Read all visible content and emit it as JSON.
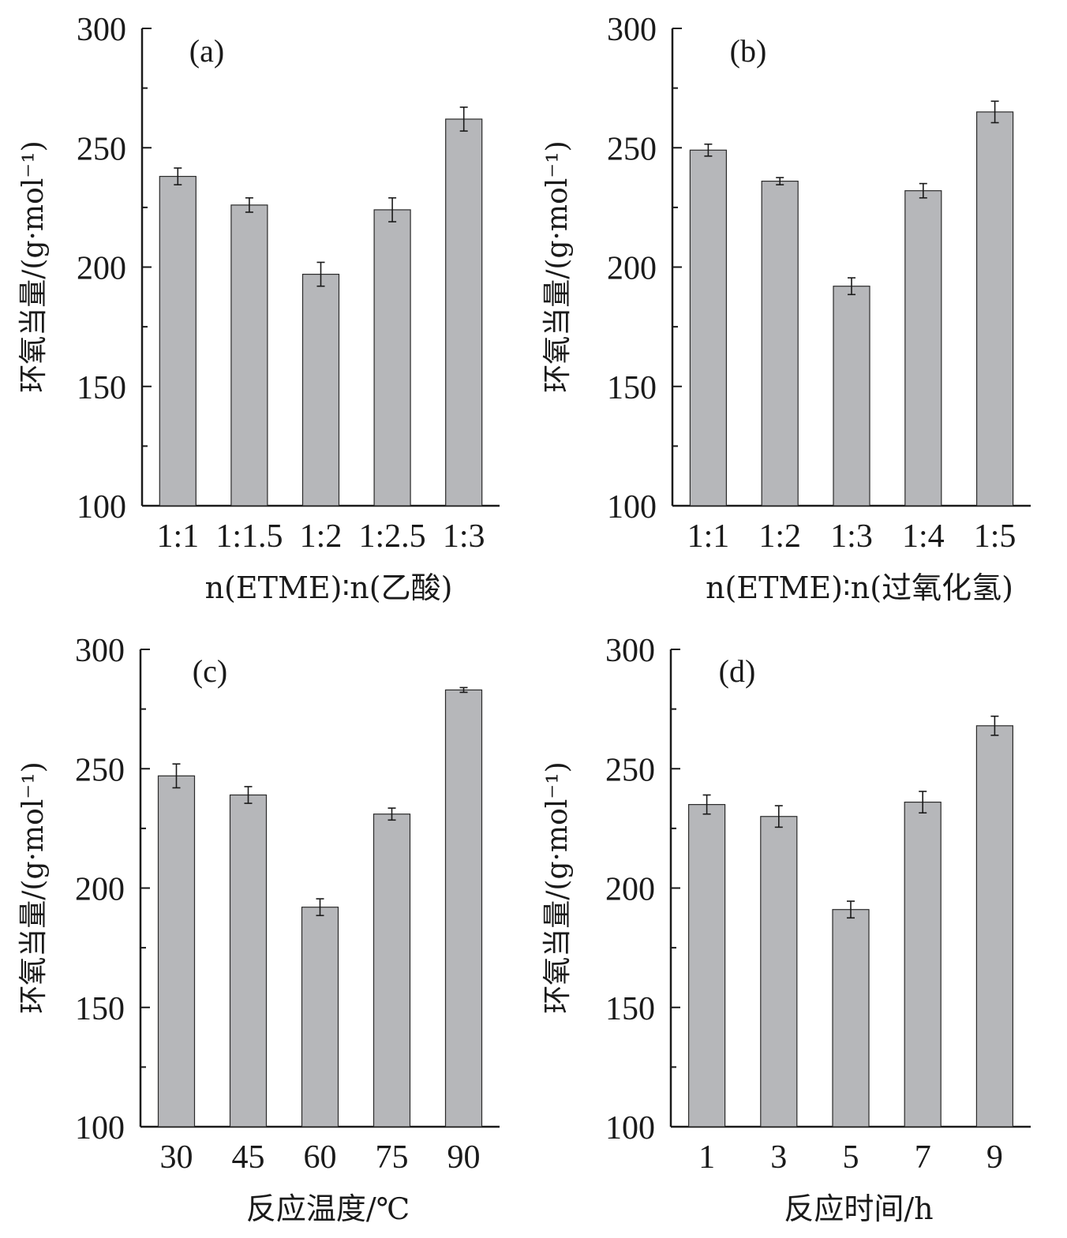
{
  "chart_data": [
    {
      "type": "bar",
      "panel_label": "(a)",
      "categories": [
        "1:1",
        "1:1.5",
        "1:2",
        "1:2.5",
        "1:3"
      ],
      "values": [
        238,
        226,
        197,
        224,
        262
      ],
      "errors": [
        3.5,
        3,
        5,
        5,
        5
      ],
      "ylabel": "环氧当量/(g·mol⁻¹)",
      "xlabel": "n(ETME)∶n(乙酸)",
      "ylim": [
        100,
        300
      ],
      "yticks": [
        100,
        150,
        200,
        250,
        300
      ]
    },
    {
      "type": "bar",
      "panel_label": "(b)",
      "categories": [
        "1:1",
        "1:2",
        "1:3",
        "1:4",
        "1:5"
      ],
      "values": [
        249,
        236,
        192,
        232,
        265
      ],
      "errors": [
        2.5,
        1.5,
        3.5,
        3,
        4.5
      ],
      "ylabel": "环氧当量/(g·mol⁻¹)",
      "xlabel": "n(ETME)∶n(过氧化氢)",
      "ylim": [
        100,
        300
      ],
      "yticks": [
        100,
        150,
        200,
        250,
        300
      ]
    },
    {
      "type": "bar",
      "panel_label": "(c)",
      "categories": [
        "30",
        "45",
        "60",
        "75",
        "90"
      ],
      "values": [
        247,
        239,
        192,
        231,
        283
      ],
      "errors": [
        5,
        3.5,
        3.5,
        2.5,
        1
      ],
      "ylabel": "环氧当量/(g·mol⁻¹)",
      "xlabel": "反应温度/℃",
      "ylim": [
        100,
        300
      ],
      "yticks": [
        100,
        150,
        200,
        250,
        300
      ]
    },
    {
      "type": "bar",
      "panel_label": "(d)",
      "categories": [
        "1",
        "3",
        "5",
        "7",
        "9"
      ],
      "values": [
        235,
        230,
        191,
        236,
        268
      ],
      "errors": [
        4,
        4.5,
        3.5,
        4.5,
        4
      ],
      "ylabel": "环氧当量/(g·mol⁻¹)",
      "xlabel": "反应时间/h",
      "ylim": [
        100,
        300
      ],
      "yticks": [
        100,
        150,
        200,
        250,
        300
      ]
    }
  ]
}
